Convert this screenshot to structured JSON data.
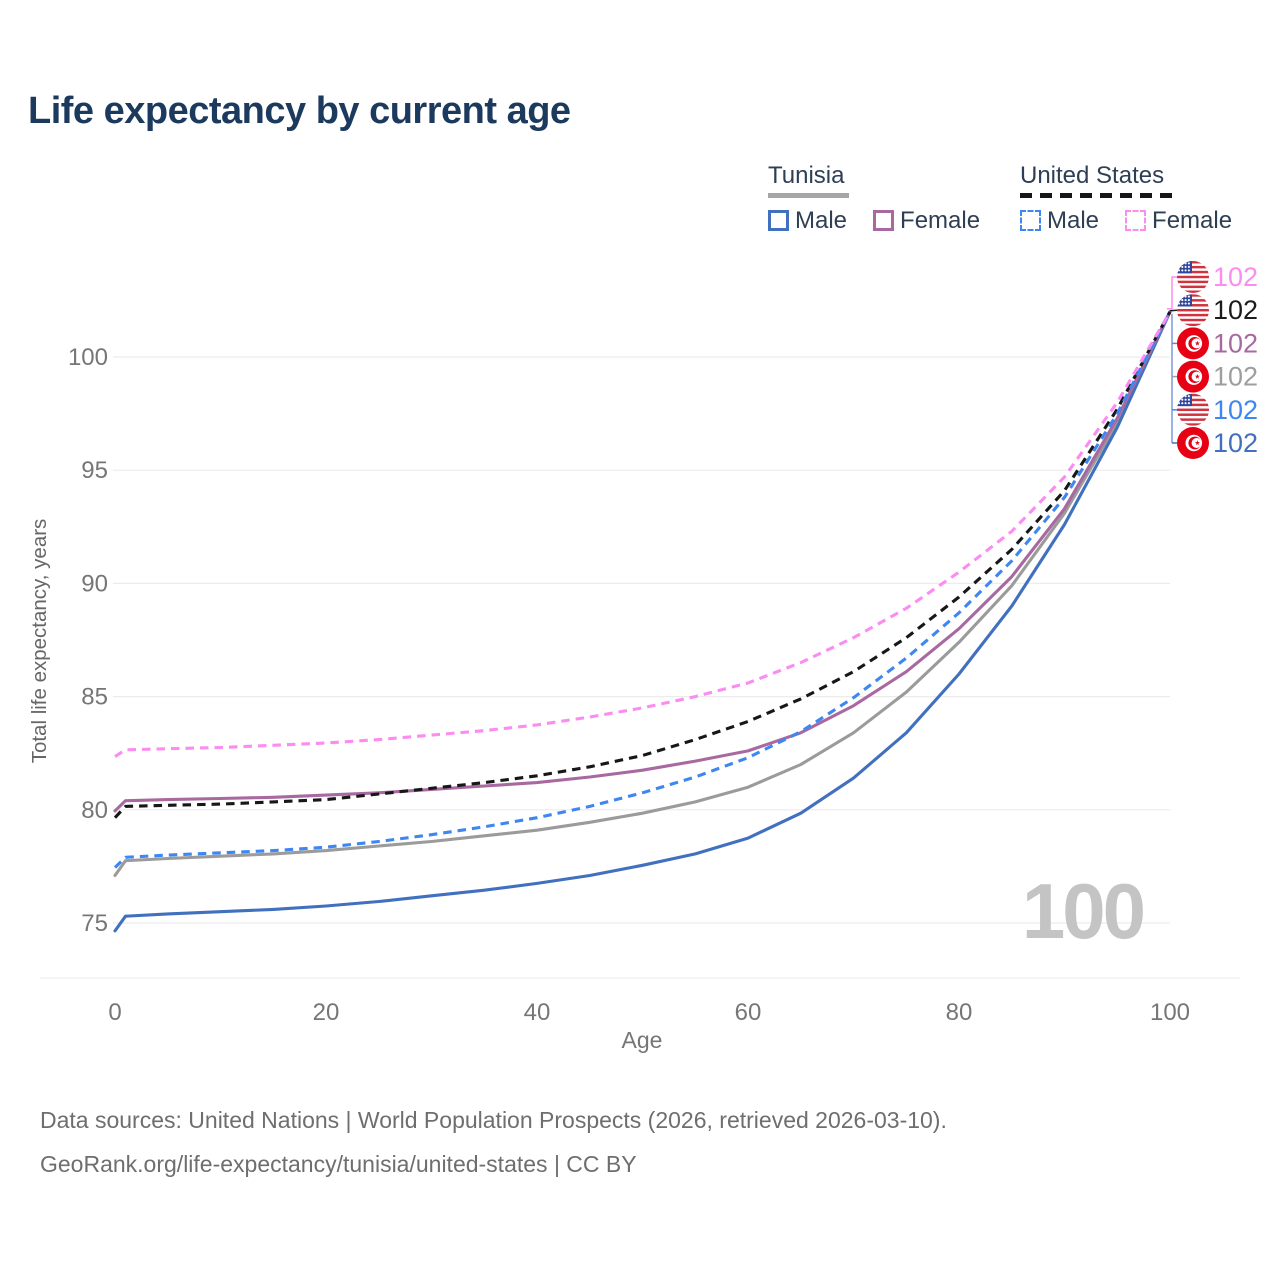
{
  "title": "Life expectancy by current age",
  "legend": {
    "position": "top-right",
    "groups": [
      {
        "label": "Tunisia",
        "underline_style": "solid",
        "underline_color": "#a6a6a6",
        "items": [
          {
            "label": "Male",
            "color": "#4170bf",
            "dashed": false
          },
          {
            "label": "Female",
            "color": "#a869a1",
            "dashed": false
          }
        ]
      },
      {
        "label": "United States",
        "underline_style": "dashed",
        "underline_color": "#161616",
        "items": [
          {
            "label": "Male",
            "color": "#3e86f2",
            "dashed": true
          },
          {
            "label": "Female",
            "color": "#fb8cf1",
            "dashed": true
          }
        ]
      }
    ]
  },
  "chart_data": {
    "type": "line",
    "xlabel": "Age",
    "ylabel": "Total life expectancy, years",
    "x_ticks": [
      0,
      20,
      40,
      60,
      80,
      100
    ],
    "y_ticks": [
      75,
      80,
      85,
      90,
      95,
      100
    ],
    "xlim": [
      0,
      100
    ],
    "ylim": [
      74.4,
      102.8
    ],
    "grid": "horizontal",
    "gridline_color": "#ececec",
    "axis_text_color": "#767676",
    "series": [
      {
        "name": "Tunisia - Both sexes",
        "country": "Tunisia",
        "sex": "both",
        "line_style": "solid",
        "color": "#9b9b9b",
        "end_label": "102",
        "points": [
          [
            0,
            77.1
          ],
          [
            1,
            77.75
          ],
          [
            5,
            77.85
          ],
          [
            10,
            77.95
          ],
          [
            15,
            78.05
          ],
          [
            20,
            78.2
          ],
          [
            25,
            78.4
          ],
          [
            30,
            78.6
          ],
          [
            35,
            78.85
          ],
          [
            40,
            79.1
          ],
          [
            45,
            79.45
          ],
          [
            50,
            79.85
          ],
          [
            55,
            80.35
          ],
          [
            60,
            81.0
          ],
          [
            65,
            82.0
          ],
          [
            70,
            83.4
          ],
          [
            75,
            85.2
          ],
          [
            80,
            87.4
          ],
          [
            85,
            89.9
          ],
          [
            90,
            93.1
          ],
          [
            95,
            97.1
          ],
          [
            100,
            102.0
          ]
        ]
      },
      {
        "name": "Tunisia - Male",
        "country": "Tunisia",
        "sex": "male",
        "line_style": "solid",
        "color": "#4170bf",
        "end_label": "102",
        "points": [
          [
            0,
            74.65
          ],
          [
            1,
            75.3
          ],
          [
            5,
            75.4
          ],
          [
            10,
            75.5
          ],
          [
            15,
            75.6
          ],
          [
            20,
            75.75
          ],
          [
            25,
            75.95
          ],
          [
            30,
            76.2
          ],
          [
            35,
            76.45
          ],
          [
            40,
            76.75
          ],
          [
            45,
            77.1
          ],
          [
            50,
            77.55
          ],
          [
            55,
            78.05
          ],
          [
            60,
            78.75
          ],
          [
            65,
            79.85
          ],
          [
            70,
            81.4
          ],
          [
            75,
            83.4
          ],
          [
            80,
            86.0
          ],
          [
            85,
            89.0
          ],
          [
            90,
            92.6
          ],
          [
            95,
            96.9
          ],
          [
            100,
            102.0
          ]
        ]
      },
      {
        "name": "Tunisia - Female",
        "country": "Tunisia",
        "sex": "female",
        "line_style": "solid",
        "color": "#a869a1",
        "end_label": "102",
        "points": [
          [
            0,
            79.95
          ],
          [
            1,
            80.4
          ],
          [
            5,
            80.45
          ],
          [
            10,
            80.5
          ],
          [
            15,
            80.55
          ],
          [
            20,
            80.65
          ],
          [
            25,
            80.75
          ],
          [
            30,
            80.9
          ],
          [
            35,
            81.05
          ],
          [
            40,
            81.2
          ],
          [
            45,
            81.45
          ],
          [
            50,
            81.75
          ],
          [
            55,
            82.15
          ],
          [
            60,
            82.6
          ],
          [
            65,
            83.4
          ],
          [
            70,
            84.6
          ],
          [
            75,
            86.1
          ],
          [
            80,
            88.0
          ],
          [
            85,
            90.3
          ],
          [
            90,
            93.3
          ],
          [
            95,
            97.3
          ],
          [
            100,
            102.0
          ]
        ]
      },
      {
        "name": "United States - Both sexes",
        "country": "United States",
        "sex": "both",
        "line_style": "dashed",
        "color": "#171717",
        "end_label": "102",
        "points": [
          [
            0,
            79.65
          ],
          [
            1,
            80.15
          ],
          [
            5,
            80.2
          ],
          [
            10,
            80.25
          ],
          [
            15,
            80.35
          ],
          [
            20,
            80.45
          ],
          [
            25,
            80.7
          ],
          [
            30,
            80.95
          ],
          [
            35,
            81.2
          ],
          [
            40,
            81.5
          ],
          [
            45,
            81.9
          ],
          [
            50,
            82.4
          ],
          [
            55,
            83.1
          ],
          [
            60,
            83.9
          ],
          [
            65,
            84.9
          ],
          [
            70,
            86.1
          ],
          [
            75,
            87.6
          ],
          [
            80,
            89.4
          ],
          [
            85,
            91.5
          ],
          [
            90,
            94.1
          ],
          [
            95,
            97.7
          ],
          [
            100,
            102.0
          ]
        ]
      },
      {
        "name": "United States - Male",
        "country": "United States",
        "sex": "male",
        "line_style": "dashed",
        "color": "#3e86f2",
        "end_label": "102",
        "points": [
          [
            0,
            77.45
          ],
          [
            1,
            77.9
          ],
          [
            5,
            78.0
          ],
          [
            10,
            78.1
          ],
          [
            15,
            78.2
          ],
          [
            20,
            78.35
          ],
          [
            25,
            78.6
          ],
          [
            30,
            78.9
          ],
          [
            35,
            79.25
          ],
          [
            40,
            79.65
          ],
          [
            45,
            80.15
          ],
          [
            50,
            80.75
          ],
          [
            55,
            81.45
          ],
          [
            60,
            82.3
          ],
          [
            65,
            83.45
          ],
          [
            70,
            84.95
          ],
          [
            75,
            86.7
          ],
          [
            80,
            88.7
          ],
          [
            85,
            91.0
          ],
          [
            90,
            93.8
          ],
          [
            95,
            97.5
          ],
          [
            100,
            102.0
          ]
        ]
      },
      {
        "name": "United States - Female",
        "country": "United States",
        "sex": "female",
        "line_style": "dashed",
        "color": "#fb8cf1",
        "end_label": "102",
        "points": [
          [
            0,
            82.35
          ],
          [
            1,
            82.65
          ],
          [
            5,
            82.7
          ],
          [
            10,
            82.75
          ],
          [
            15,
            82.85
          ],
          [
            20,
            82.95
          ],
          [
            25,
            83.1
          ],
          [
            30,
            83.3
          ],
          [
            35,
            83.5
          ],
          [
            40,
            83.75
          ],
          [
            45,
            84.1
          ],
          [
            50,
            84.5
          ],
          [
            55,
            85.0
          ],
          [
            60,
            85.6
          ],
          [
            65,
            86.5
          ],
          [
            70,
            87.6
          ],
          [
            75,
            88.9
          ],
          [
            80,
            90.5
          ],
          [
            85,
            92.3
          ],
          [
            90,
            94.7
          ],
          [
            95,
            98.0
          ],
          [
            100,
            102.0
          ]
        ]
      }
    ],
    "end_labels": [
      {
        "series": "United States - Female",
        "flag": "us",
        "value": "102",
        "color": "#fb8cf1"
      },
      {
        "series": "United States - Both sexes",
        "flag": "us",
        "value": "102",
        "color": "#1c1c1c"
      },
      {
        "series": "Tunisia - Female",
        "flag": "tn",
        "value": "102",
        "color": "#a869a1"
      },
      {
        "series": "Tunisia - Both sexes",
        "flag": "tn",
        "value": "102",
        "color": "#9e9e9e"
      },
      {
        "series": "United States - Male",
        "flag": "us",
        "value": "102",
        "color": "#3e86f2"
      },
      {
        "series": "Tunisia - Male",
        "flag": "tn",
        "value": "102",
        "color": "#4170bf"
      }
    ],
    "flag_colors": {
      "us_red": "#d0333f",
      "us_blue": "#31479e",
      "tn_red": "#e70013"
    }
  },
  "watermark": "100",
  "footer": {
    "line1": "Data sources: United Nations | World Population Prospects (2026, retrieved 2026-03-10).",
    "line2": "GeoRank.org/life-expectancy/tunisia/united-states | CC BY"
  }
}
